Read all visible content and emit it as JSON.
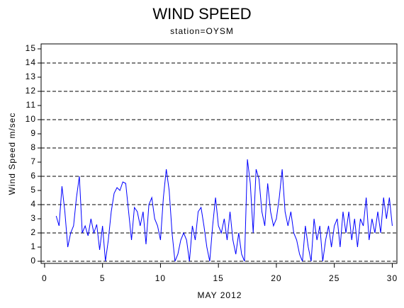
{
  "chart_data": {
    "type": "line",
    "title": "WIND SPEED",
    "subtitle": "station=OYSM",
    "x_label": "MAY 2012",
    "y_label": "Wind Speed m/sec",
    "xlim": [
      -0.3,
      30.4
    ],
    "xticks": [
      0,
      5,
      10,
      15,
      20,
      25,
      30
    ],
    "ylim": [
      -0.15,
      15.35
    ],
    "yticks": [
      0,
      1,
      2,
      3,
      4,
      5,
      6,
      7,
      8,
      9,
      10,
      11,
      12,
      13,
      14,
      15
    ],
    "gridlines": [
      0,
      2,
      4,
      6,
      8,
      10,
      12,
      14
    ],
    "series": [
      {
        "color": "#0000ff",
        "x": [
          1.0,
          1.25,
          1.5,
          1.75,
          2.0,
          2.25,
          2.5,
          2.75,
          3.0,
          3.25,
          3.5,
          3.75,
          4.0,
          4.25,
          4.5,
          4.75,
          5.0,
          5.25,
          5.5,
          5.75,
          6.0,
          6.25,
          6.5,
          6.75,
          7.0,
          7.25,
          7.5,
          7.75,
          8.0,
          8.25,
          8.5,
          8.75,
          9.0,
          9.25,
          9.5,
          9.75,
          10.0,
          10.25,
          10.5,
          10.75,
          11.0,
          11.25,
          11.5,
          11.75,
          12.0,
          12.25,
          12.5,
          12.75,
          13.0,
          13.25,
          13.5,
          13.75,
          14.0,
          14.25,
          14.5,
          14.75,
          15.0,
          15.25,
          15.5,
          15.75,
          16.0,
          16.25,
          16.5,
          16.75,
          17.0,
          17.25,
          17.5,
          17.75,
          18.0,
          18.25,
          18.5,
          18.75,
          19.0,
          19.25,
          19.5,
          19.75,
          20.0,
          20.25,
          20.5,
          20.75,
          21.0,
          21.25,
          21.5,
          21.75,
          22.0,
          22.25,
          22.5,
          22.75,
          23.0,
          23.25,
          23.5,
          23.75,
          24.0,
          24.25,
          24.5,
          24.75,
          25.0,
          25.25,
          25.5,
          25.75,
          26.0,
          26.25,
          26.5,
          26.75,
          27.0,
          27.25,
          27.5,
          27.75,
          28.0,
          28.25,
          28.5,
          28.75,
          29.0,
          29.25,
          29.5,
          29.75,
          30.0
        ],
        "values": [
          3.2,
          2.5,
          5.3,
          3.5,
          1.0,
          2.0,
          2.5,
          4.5,
          6.0,
          2.0,
          2.5,
          1.8,
          3.0,
          2.0,
          2.6,
          0.8,
          2.5,
          0.0,
          1.5,
          3.5,
          4.8,
          5.2,
          5.0,
          5.6,
          5.5,
          3.5,
          1.5,
          3.8,
          3.5,
          2.5,
          3.5,
          1.2,
          4.0,
          4.5,
          3.0,
          2.5,
          1.5,
          4.5,
          6.5,
          5.0,
          2.0,
          0.0,
          0.5,
          1.5,
          2.0,
          1.5,
          0.0,
          2.5,
          1.5,
          3.5,
          3.8,
          2.5,
          1.0,
          0.0,
          2.5,
          4.5,
          2.5,
          2.0,
          3.0,
          1.5,
          3.5,
          1.5,
          0.5,
          2.0,
          0.5,
          0.0,
          7.2,
          5.5,
          2.0,
          6.5,
          5.8,
          3.5,
          2.5,
          5.5,
          3.5,
          2.5,
          3.0,
          4.5,
          6.5,
          3.5,
          2.5,
          3.5,
          2.0,
          1.5,
          0.5,
          0.0,
          2.5,
          1.0,
          0.0,
          3.0,
          1.5,
          2.5,
          0.0,
          1.5,
          2.5,
          1.0,
          2.5,
          3.0,
          1.0,
          3.5,
          2.0,
          3.5,
          1.5,
          3.0,
          1.0,
          3.0,
          2.5,
          4.5,
          1.5,
          3.0,
          2.0,
          3.5,
          2.0,
          4.5,
          3.0,
          4.5,
          2.5
        ]
      }
    ]
  }
}
